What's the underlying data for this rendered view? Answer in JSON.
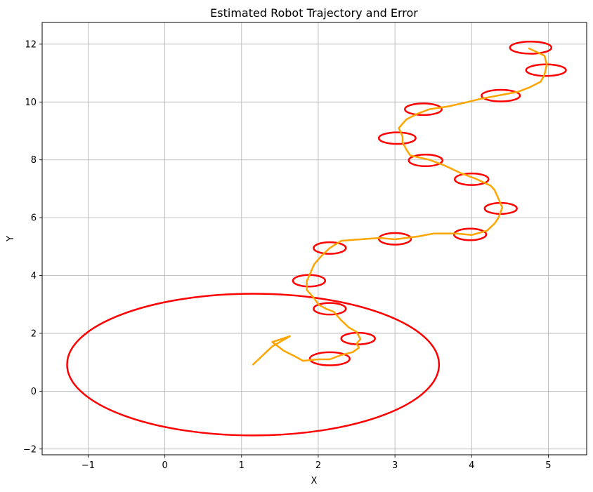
{
  "chart_data": {
    "type": "line",
    "title": "Estimated Robot Trajectory and Error",
    "xlabel": "X",
    "ylabel": "Y",
    "xlim": [
      -1.6,
      5.5
    ],
    "ylim": [
      -2.2,
      12.75
    ],
    "xticks": [
      -1,
      0,
      1,
      2,
      3,
      4,
      5
    ],
    "yticks": [
      -2,
      0,
      2,
      4,
      6,
      8,
      10,
      12
    ],
    "grid": true,
    "colors": {
      "trajectory": "#ffa500",
      "error": "#ff0000",
      "grid": "#b0b0b0"
    },
    "series": [
      {
        "values": [
          [
            1.15,
            0.92
          ],
          [
            1.4,
            1.55
          ],
          [
            1.63,
            1.9
          ],
          [
            1.4,
            1.7
          ],
          [
            1.55,
            1.4
          ],
          [
            1.7,
            1.2
          ],
          [
            1.8,
            1.05
          ],
          [
            2.0,
            1.1
          ],
          [
            2.15,
            1.1
          ],
          [
            2.3,
            1.25
          ],
          [
            2.45,
            1.35
          ],
          [
            2.53,
            1.5
          ],
          [
            2.5,
            1.65
          ],
          [
            2.55,
            1.8
          ],
          [
            2.5,
            2.05
          ],
          [
            2.4,
            2.2
          ],
          [
            2.3,
            2.45
          ],
          [
            2.2,
            2.75
          ],
          [
            2.1,
            2.85
          ],
          [
            2.0,
            3.0
          ],
          [
            1.95,
            3.2
          ],
          [
            1.85,
            3.5
          ],
          [
            1.85,
            3.8
          ],
          [
            1.9,
            4.1
          ],
          [
            1.95,
            4.4
          ],
          [
            2.05,
            4.7
          ],
          [
            2.15,
            4.95
          ],
          [
            2.3,
            5.2
          ],
          [
            2.55,
            5.25
          ],
          [
            2.8,
            5.3
          ],
          [
            3.0,
            5.25
          ],
          [
            3.3,
            5.35
          ],
          [
            3.5,
            5.45
          ],
          [
            3.8,
            5.45
          ],
          [
            4.0,
            5.4
          ],
          [
            4.2,
            5.55
          ],
          [
            4.3,
            5.8
          ],
          [
            4.35,
            6.0
          ],
          [
            4.4,
            6.35
          ],
          [
            4.35,
            6.65
          ],
          [
            4.3,
            6.95
          ],
          [
            4.25,
            7.1
          ],
          [
            4.05,
            7.35
          ],
          [
            3.85,
            7.55
          ],
          [
            3.65,
            7.8
          ],
          [
            3.45,
            8.0
          ],
          [
            3.2,
            8.15
          ],
          [
            3.15,
            8.35
          ],
          [
            3.1,
            8.6
          ],
          [
            3.1,
            8.8
          ],
          [
            3.05,
            9.1
          ],
          [
            3.15,
            9.4
          ],
          [
            3.3,
            9.6
          ],
          [
            3.45,
            9.75
          ],
          [
            3.7,
            9.85
          ],
          [
            3.95,
            10.0
          ],
          [
            4.1,
            10.1
          ],
          [
            4.4,
            10.25
          ],
          [
            4.6,
            10.35
          ],
          [
            4.75,
            10.5
          ],
          [
            4.9,
            10.7
          ],
          [
            4.95,
            10.95
          ],
          [
            4.98,
            11.3
          ],
          [
            4.95,
            11.6
          ],
          [
            4.75,
            11.85
          ]
        ]
      }
    ],
    "error_ellipses": [
      {
        "center": [
          1.15,
          0.92
        ],
        "width": 4.85,
        "height": 4.9
      },
      {
        "center": [
          2.15,
          1.12
        ],
        "width": 0.52,
        "height": 0.45
      },
      {
        "center": [
          2.52,
          1.82
        ],
        "width": 0.44,
        "height": 0.4
      },
      {
        "center": [
          2.15,
          2.85
        ],
        "width": 0.42,
        "height": 0.4
      },
      {
        "center": [
          1.88,
          3.82
        ],
        "width": 0.42,
        "height": 0.4
      },
      {
        "center": [
          2.15,
          4.95
        ],
        "width": 0.42,
        "height": 0.4
      },
      {
        "center": [
          3.0,
          5.27
        ],
        "width": 0.42,
        "height": 0.4
      },
      {
        "center": [
          3.98,
          5.42
        ],
        "width": 0.42,
        "height": 0.4
      },
      {
        "center": [
          4.38,
          6.32
        ],
        "width": 0.42,
        "height": 0.38
      },
      {
        "center": [
          4.0,
          7.33
        ],
        "width": 0.44,
        "height": 0.4
      },
      {
        "center": [
          3.4,
          7.98
        ],
        "width": 0.44,
        "height": 0.4
      },
      {
        "center": [
          3.03,
          8.75
        ],
        "width": 0.48,
        "height": 0.4
      },
      {
        "center": [
          3.37,
          9.75
        ],
        "width": 0.48,
        "height": 0.4
      },
      {
        "center": [
          4.38,
          10.22
        ],
        "width": 0.5,
        "height": 0.4
      },
      {
        "center": [
          4.97,
          11.1
        ],
        "width": 0.52,
        "height": 0.4
      },
      {
        "center": [
          4.77,
          11.88
        ],
        "width": 0.54,
        "height": 0.42
      }
    ]
  }
}
